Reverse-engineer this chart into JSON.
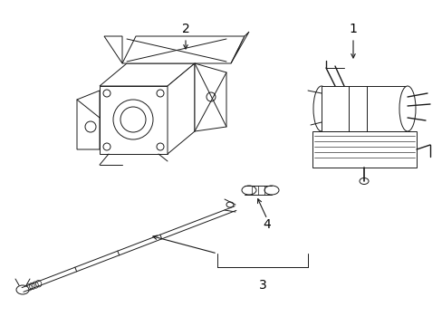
{
  "background_color": "#ffffff",
  "line_color": "#1a1a1a",
  "line_width": 0.7,
  "label_fontsize": 9,
  "figsize": [
    4.89,
    3.6
  ],
  "dpi": 100
}
